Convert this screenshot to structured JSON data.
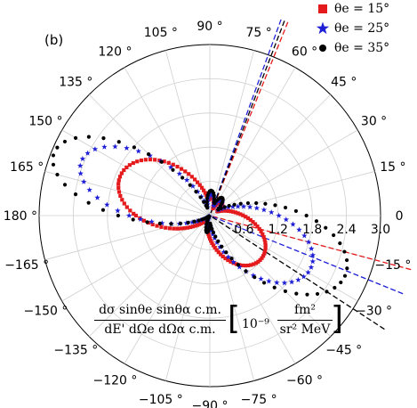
{
  "panel_label": "(b)",
  "legend": [
    {
      "label": "θe = 15°",
      "color": "#e41a1c",
      "marker": "square"
    },
    {
      "label": "θe = 25°",
      "color": "#1f1fd6",
      "marker": "star"
    },
    {
      "label": "θe = 35°",
      "color": "#000000",
      "marker": "circle"
    }
  ],
  "formula": {
    "numerator": "dσ sinθe sinθα c.m.",
    "denominator": "dE' dΩe dΩα c.m.",
    "unit_prefix": "10⁻⁹",
    "unit_numerator": "fm²",
    "unit_denominator": "sr² MeV"
  },
  "chart_data": {
    "type": "polar-scatter",
    "angle_unit": "degrees",
    "radial_range": [
      0,
      3.0
    ],
    "radial_ticks": [
      "0.6",
      "1.2",
      "1.8",
      "2.4",
      "3.0"
    ],
    "radial_tick_values": [
      0.6,
      1.2,
      1.8,
      2.4,
      3.0
    ],
    "angular_ticks": [
      {
        "angle": 0,
        "label": "0"
      },
      {
        "angle": 15,
        "label": "15 °"
      },
      {
        "angle": 30,
        "label": "30 °"
      },
      {
        "angle": 45,
        "label": "45 °"
      },
      {
        "angle": 60,
        "label": "60 °"
      },
      {
        "angle": 75,
        "label": "75 °"
      },
      {
        "angle": 90,
        "label": "90 °"
      },
      {
        "angle": 105,
        "label": "105 °"
      },
      {
        "angle": 120,
        "label": "120 °"
      },
      {
        "angle": 135,
        "label": "135 °"
      },
      {
        "angle": 150,
        "label": "150 °"
      },
      {
        "angle": 165,
        "label": "165 °"
      },
      {
        "angle": 180,
        "label": "180 °"
      },
      {
        "angle": -165,
        "label": "−165 °"
      },
      {
        "angle": -150,
        "label": "−150 °"
      },
      {
        "angle": -135,
        "label": "−135 °"
      },
      {
        "angle": -120,
        "label": "−120 °"
      },
      {
        "angle": -105,
        "label": "−105 °"
      },
      {
        "angle": -90,
        "label": "−90 °"
      },
      {
        "angle": -75,
        "label": "−75 °"
      },
      {
        "angle": -60,
        "label": "−60 °"
      },
      {
        "angle": -45,
        "label": "−45 °"
      },
      {
        "angle": -30,
        "label": "−30 °"
      },
      {
        "angle": -15,
        "label": "−15 °"
      }
    ],
    "grid": true,
    "series": [
      {
        "name": "θe = 15°",
        "color": "#e41a1c",
        "marker": "square",
        "dashed_line_angles": [
          68,
          -15
        ],
        "lobes": [
          {
            "angle": 156,
            "r": 1.72,
            "width": 32
          },
          {
            "angle": -40,
            "r": 1.18,
            "width": 34
          },
          {
            "angle": 85,
            "r": 0.33,
            "width": 14
          },
          {
            "angle": 48,
            "r": 0.32,
            "width": 14
          },
          {
            "angle": -95,
            "r": 0.18,
            "width": 10
          }
        ]
      },
      {
        "name": "θe = 25°",
        "color": "#1f1fd6",
        "marker": "star",
        "dashed_line_angles": [
          70,
          -22
        ],
        "lobes": [
          {
            "angle": 157,
            "r": 2.45,
            "width": 22
          },
          {
            "angle": -28,
            "r": 2.0,
            "width": 28
          },
          {
            "angle": 86,
            "r": 0.38,
            "width": 14
          },
          {
            "angle": 52,
            "r": 0.34,
            "width": 14
          },
          {
            "angle": -98,
            "r": 0.24,
            "width": 10
          }
        ]
      },
      {
        "name": "θe = 35°",
        "color": "#000000",
        "marker": "circle",
        "dashed_line_angles": [
          69,
          -33
        ],
        "lobes": [
          {
            "angle": 158,
            "r": 2.95,
            "width": 20
          },
          {
            "angle": -24,
            "r": 2.6,
            "width": 26
          },
          {
            "angle": 87,
            "r": 0.44,
            "width": 14
          },
          {
            "angle": 55,
            "r": 0.38,
            "width": 14
          },
          {
            "angle": -100,
            "r": 0.3,
            "width": 10
          }
        ]
      }
    ]
  }
}
